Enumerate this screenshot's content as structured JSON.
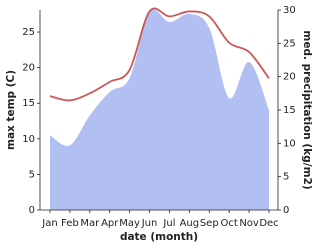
{
  "chart_data": {
    "type": "line-area",
    "x_label": "date (month)",
    "y_label": "max temp (C)",
    "y2_label": "med. precipitation (kg/m2)",
    "categories": [
      "Jan",
      "Feb",
      "Mar",
      "Apr",
      "May",
      "Jun",
      "Jul",
      "Aug",
      "Sep",
      "Oct",
      "Nov",
      "Dec"
    ],
    "series": [
      {
        "name": "max temp",
        "color": "#cd5656",
        "kind": "line",
        "values": [
          16.0,
          15.4,
          16.4,
          18.0,
          19.7,
          27.9,
          27.2,
          27.9,
          27.2,
          23.5,
          22.2,
          18.5
        ]
      },
      {
        "name": "med. precipitation",
        "color": "#b1bff2",
        "kind": "area",
        "axis": "y2",
        "values": [
          11.2,
          9.7,
          14.2,
          17.7,
          19.8,
          29.7,
          28.2,
          29.4,
          27.3,
          16.8,
          22.2,
          15.0
        ]
      }
    ],
    "ylim": [
      0,
      28.1
    ],
    "yticks": [
      0,
      5,
      10,
      15,
      20,
      25
    ],
    "y2lim": [
      0,
      30
    ],
    "y2ticks": [
      0,
      5,
      10,
      15,
      20,
      25,
      30
    ]
  }
}
